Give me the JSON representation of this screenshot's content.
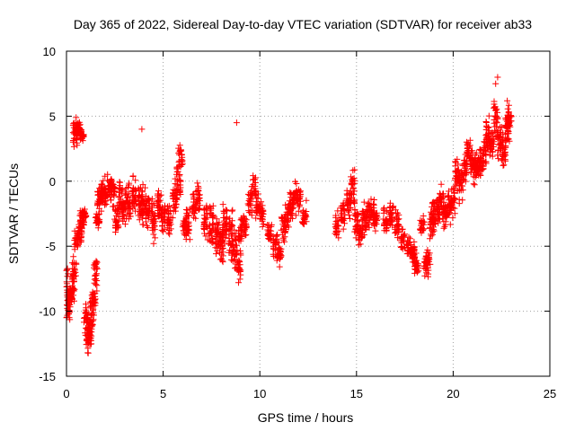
{
  "chart_data": {
    "type": "scatter",
    "title": "Day 365 of 2022, Sidereal Day-to-day VTEC variation (SDTVAR) for receiver ab33",
    "xlabel": "GPS time / hours",
    "ylabel": "SDTVAR / TECUs",
    "xlim": [
      0,
      25
    ],
    "ylim": [
      -15,
      10
    ],
    "xticks": [
      0,
      5,
      10,
      15,
      20,
      25
    ],
    "yticks": [
      -15,
      -10,
      -5,
      0,
      5,
      10
    ],
    "xtick_labels": [
      "0",
      "5",
      "10",
      "15",
      "20",
      "25"
    ],
    "ytick_labels": [
      "-15",
      "-10",
      "-5",
      "0",
      "5",
      "10"
    ],
    "grid": true,
    "marker": "+",
    "color": "#ff0000",
    "series": [
      {
        "name": "SDTVAR",
        "profile": [
          [
            0.0,
            -8.2,
            1.5
          ],
          [
            0.1,
            -9.5,
            1.5
          ],
          [
            0.2,
            -8.8,
            1.0
          ],
          [
            0.3,
            -8.5,
            0.8
          ],
          [
            0.4,
            -7.0,
            1.5
          ],
          [
            0.45,
            3.5,
            1.2
          ],
          [
            0.5,
            4.0,
            0.6
          ],
          [
            0.6,
            4.2,
            0.5
          ],
          [
            0.7,
            3.8,
            0.5
          ],
          [
            0.8,
            3.5,
            0.4
          ],
          [
            0.5,
            -4.5,
            1.0
          ],
          [
            0.7,
            -4.0,
            1.0
          ],
          [
            0.8,
            -3.0,
            1.0
          ],
          [
            0.9,
            -2.5,
            1.0
          ],
          [
            1.0,
            -10.5,
            1.2
          ],
          [
            1.1,
            -12.0,
            1.2
          ],
          [
            1.2,
            -11.5,
            1.2
          ],
          [
            1.3,
            -10.0,
            1.2
          ],
          [
            1.4,
            -9.0,
            1.0
          ],
          [
            1.5,
            -7.0,
            1.2
          ],
          [
            1.6,
            -3.0,
            1.0
          ],
          [
            1.7,
            -1.5,
            1.0
          ],
          [
            1.8,
            -1.0,
            0.8
          ],
          [
            1.9,
            -0.5,
            0.8
          ],
          [
            2.0,
            -1.0,
            1.0
          ],
          [
            2.2,
            -0.5,
            1.0
          ],
          [
            2.4,
            -0.8,
            1.2
          ],
          [
            2.6,
            -3.0,
            1.2
          ],
          [
            2.8,
            -1.5,
            1.5
          ],
          [
            3.0,
            -2.0,
            1.5
          ],
          [
            3.2,
            -1.5,
            1.5
          ],
          [
            3.5,
            -1.0,
            1.5
          ],
          [
            3.8,
            -1.5,
            1.5
          ],
          [
            4.0,
            -2.0,
            1.5
          ],
          [
            4.2,
            -2.5,
            1.5
          ],
          [
            4.5,
            -3.0,
            1.8
          ],
          [
            4.8,
            -2.0,
            1.5
          ],
          [
            5.0,
            -2.5,
            1.5
          ],
          [
            5.3,
            -3.0,
            1.5
          ],
          [
            5.6,
            -1.5,
            1.5
          ],
          [
            5.8,
            0.0,
            1.5
          ],
          [
            5.9,
            2.0,
            1.0
          ],
          [
            6.1,
            -3.5,
            1.2
          ],
          [
            6.3,
            -3.5,
            1.2
          ],
          [
            6.6,
            -2.0,
            1.2
          ],
          [
            6.8,
            -1.5,
            1.2
          ],
          [
            7.2,
            -3.0,
            1.5
          ],
          [
            7.5,
            -3.5,
            1.8
          ],
          [
            7.8,
            -4.0,
            1.8
          ],
          [
            8.0,
            -4.5,
            2.0
          ],
          [
            8.2,
            -3.5,
            1.8
          ],
          [
            8.5,
            -4.0,
            1.8
          ],
          [
            8.7,
            -5.5,
            1.5
          ],
          [
            8.9,
            -6.5,
            1.0
          ],
          [
            9.0,
            -4.0,
            1.2
          ],
          [
            9.2,
            -3.5,
            1.0
          ],
          [
            9.5,
            -1.5,
            1.0
          ],
          [
            9.7,
            -0.5,
            1.0
          ],
          [
            9.9,
            -2.0,
            1.0
          ],
          [
            10.1,
            -2.5,
            1.0
          ],
          [
            10.5,
            -4.0,
            1.0
          ],
          [
            10.8,
            -5.0,
            1.0
          ],
          [
            11.0,
            -5.5,
            1.0
          ],
          [
            11.2,
            -3.5,
            1.2
          ],
          [
            11.4,
            -3.0,
            1.2
          ],
          [
            11.6,
            -2.0,
            1.2
          ],
          [
            11.8,
            -1.5,
            1.2
          ],
          [
            12.0,
            -1.0,
            1.2
          ],
          [
            12.3,
            -2.5,
            1.0
          ],
          [
            14.0,
            -3.5,
            1.0
          ],
          [
            14.3,
            -2.5,
            1.2
          ],
          [
            14.6,
            -1.5,
            1.2
          ],
          [
            14.8,
            -0.5,
            1.5
          ],
          [
            15.0,
            -3.0,
            1.5
          ],
          [
            15.2,
            -4.0,
            1.2
          ],
          [
            15.4,
            -3.0,
            1.2
          ],
          [
            15.6,
            -2.5,
            1.0
          ],
          [
            15.8,
            -2.5,
            1.0
          ],
          [
            16.0,
            -3.0,
            1.0
          ],
          [
            16.5,
            -3.0,
            1.2
          ],
          [
            16.8,
            -2.5,
            1.2
          ],
          [
            17.1,
            -3.5,
            1.2
          ],
          [
            17.4,
            -4.5,
            0.8
          ],
          [
            17.7,
            -5.0,
            0.8
          ],
          [
            17.9,
            -5.5,
            0.8
          ],
          [
            18.0,
            -6.0,
            0.8
          ],
          [
            18.1,
            -6.5,
            0.8
          ],
          [
            18.4,
            -3.5,
            0.8
          ],
          [
            18.6,
            -6.5,
            0.8
          ],
          [
            18.7,
            -6.0,
            0.8
          ],
          [
            18.9,
            -3.5,
            1.2
          ],
          [
            19.0,
            -2.5,
            1.2
          ],
          [
            19.2,
            -2.0,
            1.2
          ],
          [
            19.4,
            -1.5,
            1.2
          ],
          [
            19.6,
            -2.5,
            1.2
          ],
          [
            19.8,
            -2.0,
            1.2
          ],
          [
            20.0,
            -1.5,
            1.2
          ],
          [
            20.2,
            0.5,
            1.2
          ],
          [
            20.4,
            0.0,
            1.5
          ],
          [
            20.6,
            1.0,
            1.2
          ],
          [
            20.8,
            2.0,
            1.2
          ],
          [
            21.0,
            1.5,
            1.5
          ],
          [
            21.2,
            1.0,
            1.5
          ],
          [
            21.4,
            1.5,
            1.2
          ],
          [
            21.6,
            2.0,
            1.2
          ],
          [
            21.8,
            3.5,
            1.5
          ],
          [
            22.0,
            3.0,
            1.5
          ],
          [
            22.2,
            5.0,
            1.5
          ],
          [
            22.4,
            3.0,
            1.5
          ],
          [
            22.6,
            2.5,
            1.5
          ],
          [
            22.8,
            4.0,
            1.5
          ],
          [
            22.9,
            5.0,
            1.2
          ],
          [
            8.8,
            4.5,
            0.0
          ],
          [
            3.9,
            4.0,
            0.0
          ],
          [
            22.2,
            7.5,
            0.0
          ],
          [
            22.3,
            8.0,
            0.0
          ],
          [
            1.1,
            -13.2,
            0.0
          ],
          [
            0.0,
            -10.5,
            0.0
          ],
          [
            8.9,
            -7.8,
            0.0
          ]
        ]
      }
    ]
  }
}
